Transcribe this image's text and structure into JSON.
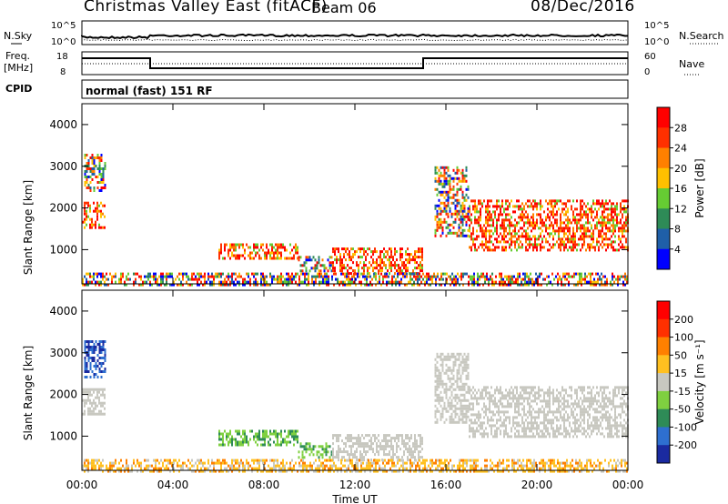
{
  "header": {
    "title": "Christmas Valley East (fitACF)",
    "beam": "Beam 06",
    "date": "08/Dec/2016"
  },
  "status_panels": {
    "nsky_label": "N.Sky",
    "nsky_ticks": [
      "10^5",
      "10^0"
    ],
    "nsearch_label": "N.Search",
    "nsearch_ticks": [
      "10^5",
      "10^0"
    ],
    "freq_label": "Freq.",
    "freq_unit": "[MHz]",
    "freq_ticks": [
      "18",
      "8"
    ],
    "nave_label": "Nave",
    "nave_ticks": [
      "60",
      "0"
    ],
    "cpid_label": "CPID",
    "cpid_value": "normal (fast) 151 RF"
  },
  "colors": {
    "power": [
      "#0000ff",
      "#1f5fa8",
      "#2e8b57",
      "#66cc33",
      "#ffc000",
      "#ff8000",
      "#ff3000",
      "#ff0000"
    ],
    "velocity": [
      "#1a2aa0",
      "#2e6fd0",
      "#2e8b57",
      "#7fd040",
      "#c8c8c0",
      "#ffc020",
      "#ff8000",
      "#ff3000",
      "#ff0000"
    ]
  },
  "chart_data": [
    {
      "type": "heatmap",
      "name": "power",
      "ylabel": "Slant Range [km]",
      "xlabel": "Time UT",
      "xlim": [
        0,
        24
      ],
      "ylim": [
        180,
        4500
      ],
      "x_ticks": [
        "00:00",
        "04:00",
        "08:00",
        "12:00",
        "16:00",
        "20:00",
        "00:00"
      ],
      "y_ticks": [
        "1000",
        "2000",
        "3000",
        "4000"
      ],
      "colorbar_label": "Power [dB]",
      "colorbar_ticks": [
        "28",
        "24",
        "20",
        "16",
        "12",
        "8",
        "4"
      ],
      "regions": [
        {
          "t": [
            0.0,
            1.0
          ],
          "r": [
            1550,
            2150
          ],
          "level": "red"
        },
        {
          "t": [
            0.1,
            1.0
          ],
          "r": [
            2400,
            3300
          ],
          "level": "mix"
        },
        {
          "t": [
            6.0,
            9.5
          ],
          "r": [
            800,
            1150
          ],
          "level": "red"
        },
        {
          "t": [
            9.5,
            11.0
          ],
          "r": [
            500,
            850
          ],
          "level": "mix"
        },
        {
          "t": [
            11.0,
            15.0
          ],
          "r": [
            400,
            1050
          ],
          "level": "red"
        },
        {
          "t": [
            0.0,
            24.0
          ],
          "r": [
            180,
            450
          ],
          "level": "mix"
        },
        {
          "t": [
            17.0,
            24.0
          ],
          "r": [
            1000,
            2200
          ],
          "level": "red"
        },
        {
          "t": [
            15.5,
            17.0
          ],
          "r": [
            1300,
            3000
          ],
          "level": "mix"
        }
      ]
    },
    {
      "type": "heatmap",
      "name": "velocity",
      "ylabel": "Slant Range [km]",
      "xlabel": "Time UT",
      "xlim": [
        0,
        24
      ],
      "ylim": [
        180,
        4500
      ],
      "x_ticks": [
        "00:00",
        "04:00",
        "08:00",
        "12:00",
        "16:00",
        "20:00",
        "00:00"
      ],
      "y_ticks": [
        "1000",
        "2000",
        "3000",
        "4000"
      ],
      "colorbar_label": "Velocity [m s⁻¹]",
      "colorbar_ticks": [
        "200",
        "100",
        "50",
        "15",
        "-15",
        "-50",
        "-100",
        "-200"
      ],
      "regions": [
        {
          "t": [
            0.0,
            1.0
          ],
          "r": [
            1550,
            2150
          ],
          "level": "gray"
        },
        {
          "t": [
            0.1,
            1.0
          ],
          "r": [
            2400,
            3300
          ],
          "level": "blue"
        },
        {
          "t": [
            6.0,
            9.5
          ],
          "r": [
            800,
            1150
          ],
          "level": "green"
        },
        {
          "t": [
            9.5,
            11.0
          ],
          "r": [
            500,
            850
          ],
          "level": "green"
        },
        {
          "t": [
            11.0,
            15.0
          ],
          "r": [
            400,
            1050
          ],
          "level": "gray"
        },
        {
          "t": [
            0.0,
            24.0
          ],
          "r": [
            180,
            450
          ],
          "level": "orange"
        },
        {
          "t": [
            17.0,
            24.0
          ],
          "r": [
            1000,
            2200
          ],
          "level": "gray"
        },
        {
          "t": [
            15.5,
            17.0
          ],
          "r": [
            1300,
            3000
          ],
          "level": "gray"
        }
      ]
    }
  ]
}
